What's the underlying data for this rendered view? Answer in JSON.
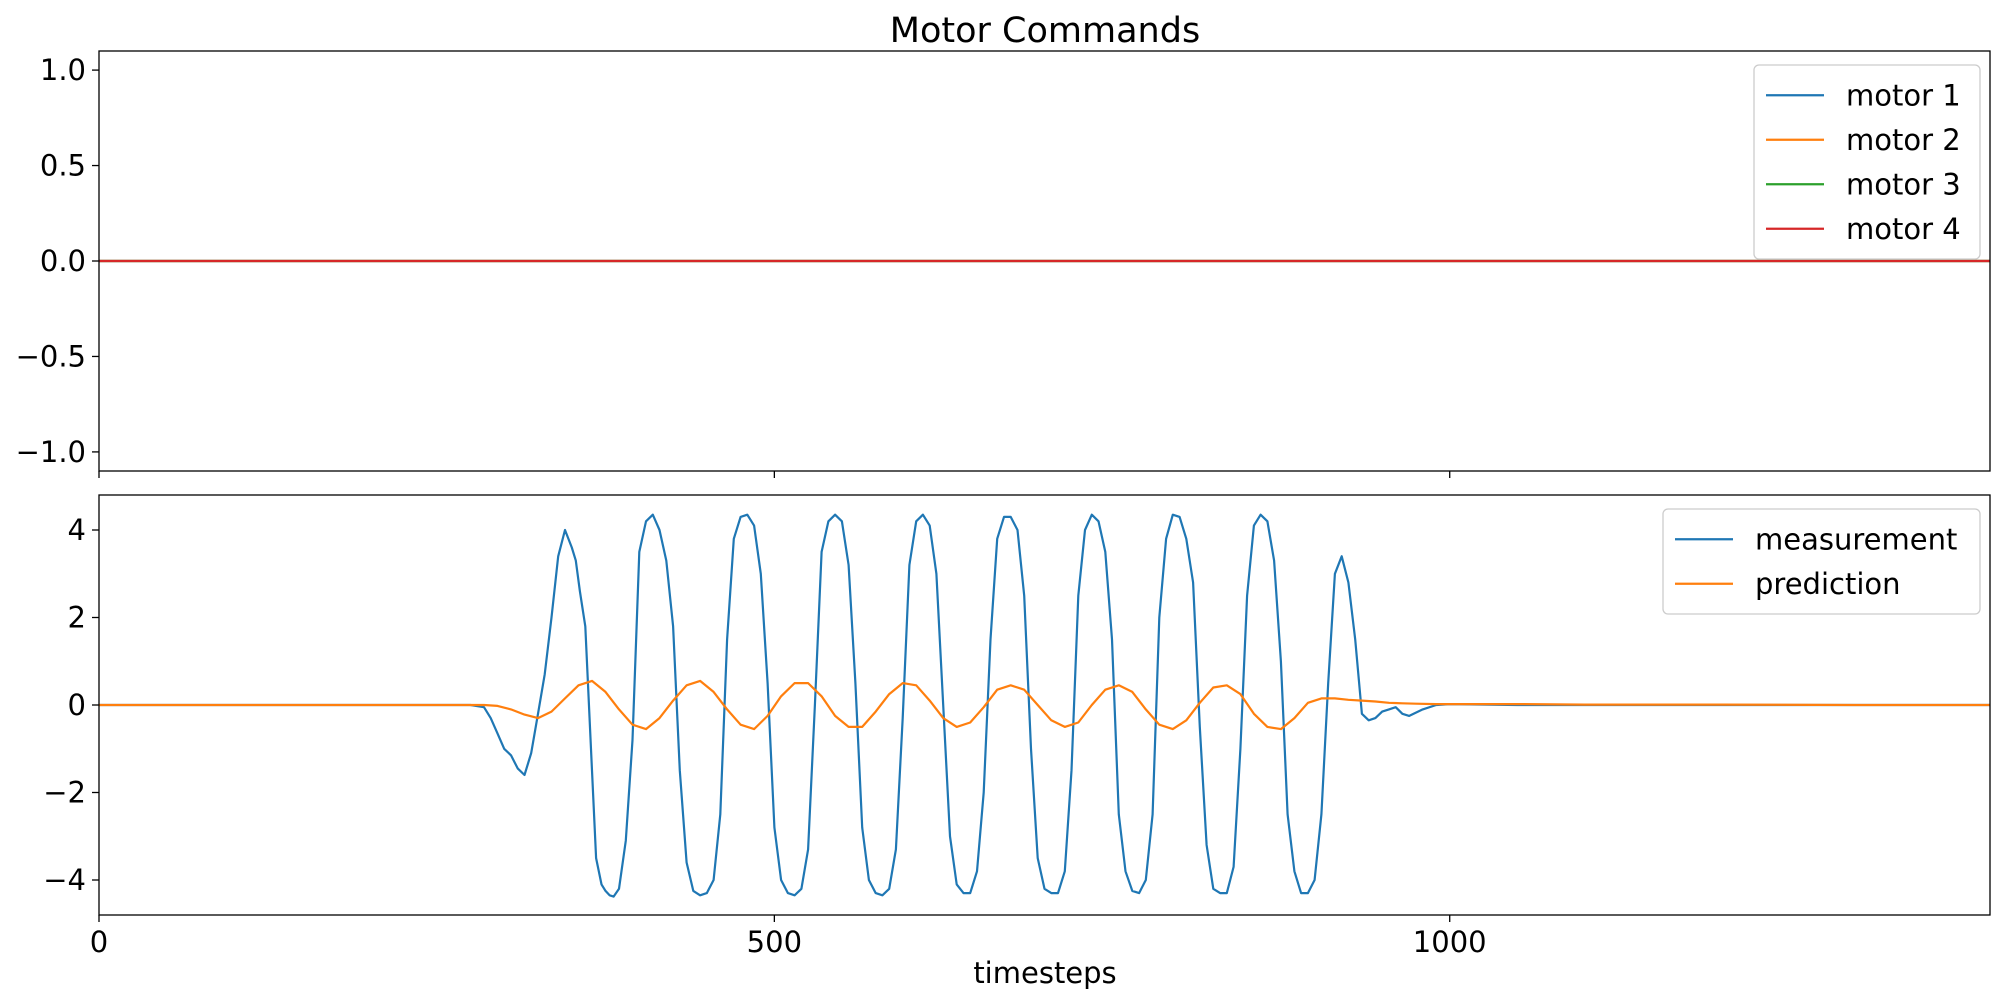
{
  "chart_data": [
    {
      "type": "line",
      "title": "Motor Commands",
      "xlim": [
        0,
        1400
      ],
      "ylim": [
        -1.1,
        1.1
      ],
      "xticks": [
        0,
        500,
        1000
      ],
      "yticks": [
        -1.0,
        -0.5,
        0.0,
        0.5,
        1.0
      ],
      "ytick_labels": [
        "−1.0",
        "−0.5",
        "0.0",
        "0.5",
        "1.0"
      ],
      "legend_position": "top-right",
      "series": [
        {
          "name": "motor 1",
          "color": "#1f77b4",
          "x": [
            0,
            1400
          ],
          "y": [
            0,
            0
          ]
        },
        {
          "name": "motor 2",
          "color": "#ff7f0e",
          "x": [
            0,
            1400
          ],
          "y": [
            0,
            0
          ]
        },
        {
          "name": "motor 3",
          "color": "#2ca02c",
          "x": [
            0,
            1400
          ],
          "y": [
            0,
            0
          ]
        },
        {
          "name": "motor 4",
          "color": "#d62728",
          "x": [
            0,
            1400
          ],
          "y": [
            0,
            0
          ]
        }
      ]
    },
    {
      "type": "line",
      "xlabel": "timesteps",
      "xlim": [
        0,
        1400
      ],
      "ylim": [
        -4.8,
        4.8
      ],
      "xticks": [
        0,
        500,
        1000
      ],
      "xtick_labels": [
        "0",
        "500",
        "1000"
      ],
      "yticks": [
        -4,
        -2,
        0,
        2,
        4
      ],
      "ytick_labels": [
        "−4",
        "−2",
        "0",
        "2",
        "4"
      ],
      "legend_position": "top-right",
      "series": [
        {
          "name": "measurement",
          "color": "#1f77b4",
          "x": [
            0,
            100,
            200,
            265,
            275,
            285,
            290,
            295,
            300,
            305,
            310,
            315,
            320,
            325,
            330,
            335,
            340,
            345,
            350,
            353,
            356,
            360,
            365,
            368,
            372,
            375,
            378,
            381,
            385,
            390,
            395,
            400,
            405,
            410,
            415,
            420,
            425,
            430,
            435,
            440,
            445,
            450,
            455,
            460,
            465,
            470,
            475,
            480,
            485,
            490,
            495,
            500,
            505,
            510,
            515,
            520,
            525,
            530,
            535,
            540,
            545,
            550,
            555,
            560,
            565,
            570,
            575,
            580,
            585,
            590,
            595,
            600,
            605,
            610,
            615,
            620,
            625,
            630,
            635,
            640,
            645,
            650,
            655,
            660,
            665,
            670,
            675,
            680,
            685,
            690,
            695,
            700,
            705,
            710,
            715,
            720,
            725,
            730,
            735,
            740,
            745,
            750,
            755,
            760,
            765,
            770,
            775,
            780,
            785,
            790,
            795,
            800,
            805,
            810,
            815,
            820,
            825,
            830,
            835,
            840,
            845,
            850,
            855,
            860,
            865,
            870,
            875,
            880,
            885,
            890,
            895,
            900,
            905,
            910,
            915,
            920,
            925,
            930,
            935,
            940,
            945,
            950,
            955,
            960,
            965,
            970,
            980,
            990,
            1000,
            1050,
            1100,
            1200,
            1300,
            1400
          ],
          "y": [
            0,
            0,
            0,
            0,
            0,
            -0.05,
            -0.3,
            -0.65,
            -1.0,
            -1.15,
            -1.45,
            -1.6,
            -1.1,
            -0.2,
            0.7,
            2.0,
            3.4,
            4.0,
            3.6,
            3.3,
            2.6,
            1.8,
            -1.5,
            -3.5,
            -4.1,
            -4.25,
            -4.35,
            -4.38,
            -4.2,
            -3.1,
            -0.8,
            3.5,
            4.2,
            4.35,
            4.0,
            3.3,
            1.8,
            -1.5,
            -3.6,
            -4.25,
            -4.35,
            -4.3,
            -4.0,
            -2.5,
            1.5,
            3.8,
            4.3,
            4.35,
            4.1,
            3.0,
            0.5,
            -2.8,
            -4.0,
            -4.3,
            -4.35,
            -4.2,
            -3.3,
            0.0,
            3.5,
            4.2,
            4.35,
            4.2,
            3.2,
            0.5,
            -2.8,
            -4.0,
            -4.3,
            -4.35,
            -4.2,
            -3.3,
            -0.3,
            3.2,
            4.2,
            4.35,
            4.1,
            3.0,
            0.0,
            -3.0,
            -4.1,
            -4.3,
            -4.3,
            -3.8,
            -2.0,
            1.5,
            3.8,
            4.3,
            4.3,
            4.0,
            2.5,
            -1.0,
            -3.5,
            -4.2,
            -4.3,
            -4.3,
            -3.8,
            -1.5,
            2.5,
            4.0,
            4.35,
            4.2,
            3.5,
            1.5,
            -2.5,
            -3.8,
            -4.25,
            -4.3,
            -4.0,
            -2.5,
            2.0,
            3.8,
            4.35,
            4.3,
            3.8,
            2.8,
            -0.5,
            -3.2,
            -4.2,
            -4.3,
            -4.3,
            -3.7,
            -1.0,
            2.5,
            4.1,
            4.35,
            4.2,
            3.3,
            1.0,
            -2.5,
            -3.8,
            -4.3,
            -4.3,
            -4.0,
            -2.5,
            0.5,
            3.0,
            3.4,
            2.8,
            1.5,
            -0.2,
            -0.35,
            -0.3,
            -0.15,
            -0.1,
            -0.05,
            -0.2,
            -0.25,
            -0.1,
            0.0,
            0.02,
            0.0,
            0.0,
            0.0,
            0.0,
            0.0
          ]
        },
        {
          "name": "prediction",
          "color": "#ff7f0e",
          "x": [
            0,
            100,
            200,
            265,
            275,
            285,
            295,
            305,
            315,
            325,
            335,
            345,
            355,
            365,
            375,
            385,
            395,
            405,
            415,
            425,
            435,
            445,
            455,
            465,
            475,
            485,
            495,
            505,
            515,
            525,
            535,
            545,
            555,
            565,
            575,
            585,
            595,
            605,
            615,
            625,
            635,
            645,
            655,
            665,
            675,
            685,
            695,
            705,
            715,
            725,
            735,
            745,
            755,
            765,
            775,
            785,
            795,
            805,
            815,
            825,
            835,
            845,
            855,
            865,
            875,
            885,
            895,
            905,
            915,
            925,
            935,
            945,
            955,
            965,
            975,
            990,
            1000,
            1050,
            1100,
            1200,
            1300,
            1400
          ],
          "y": [
            0,
            0,
            0,
            0,
            0,
            0,
            -0.02,
            -0.1,
            -0.22,
            -0.3,
            -0.15,
            0.15,
            0.45,
            0.55,
            0.3,
            -0.1,
            -0.45,
            -0.55,
            -0.3,
            0.1,
            0.45,
            0.55,
            0.3,
            -0.1,
            -0.45,
            -0.55,
            -0.25,
            0.2,
            0.5,
            0.5,
            0.2,
            -0.25,
            -0.5,
            -0.5,
            -0.15,
            0.25,
            0.5,
            0.45,
            0.1,
            -0.3,
            -0.5,
            -0.4,
            -0.05,
            0.35,
            0.45,
            0.35,
            0.0,
            -0.35,
            -0.5,
            -0.4,
            0.0,
            0.35,
            0.45,
            0.3,
            -0.1,
            -0.45,
            -0.55,
            -0.35,
            0.05,
            0.4,
            0.45,
            0.25,
            -0.2,
            -0.5,
            -0.55,
            -0.3,
            0.05,
            0.15,
            0.15,
            0.12,
            0.1,
            0.08,
            0.05,
            0.04,
            0.03,
            0.02,
            0.02,
            0.02,
            0.01,
            0.01,
            0.0,
            0.0
          ]
        }
      ]
    }
  ]
}
